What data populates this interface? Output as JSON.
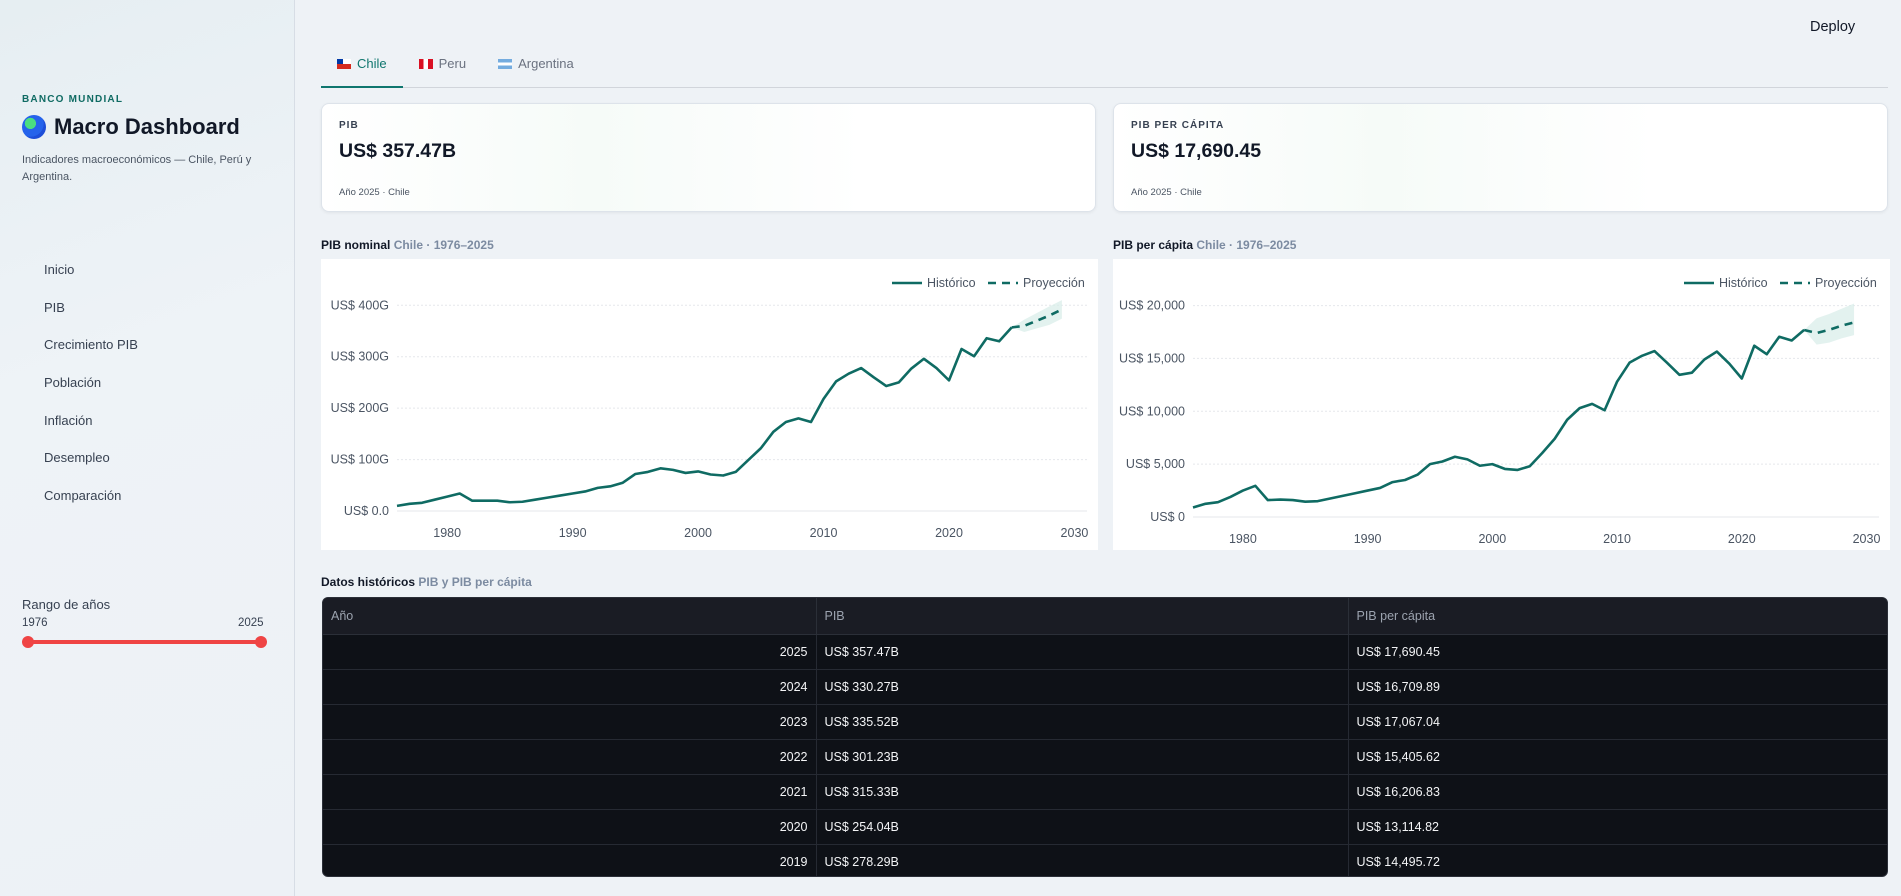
{
  "sidebar": {
    "kicker": "BANCO MUNDIAL",
    "title": "Macro Dashboard",
    "subtitle": "Indicadores macroeconómicos — Chile, Perú y Argentina.",
    "nav": [
      "Inicio",
      "PIB",
      "Crecimiento PIB",
      "Población",
      "Inflación",
      "Desempleo",
      "Comparación"
    ],
    "range": {
      "label": "Rango de años",
      "min": "1976",
      "max": "2025"
    }
  },
  "header": {
    "deploy_label": "Deploy"
  },
  "tabs": [
    {
      "label": "Chile",
      "flag": "flag-chile-icon"
    },
    {
      "label": "Peru",
      "flag": "flag-peru-icon"
    },
    {
      "label": "Argentina",
      "flag": "flag-argentina-icon"
    }
  ],
  "kpis": [
    {
      "label": "PIB",
      "value": "US$ 357.47B",
      "foot": "Año 2025 · Chile"
    },
    {
      "label": "PIB PER CÁPITA",
      "value": "US$ 17,690.45",
      "foot": "Año 2025 · Chile"
    }
  ],
  "charts_titles": [
    {
      "main": "PIB nominal",
      "sub": "Chile · 1976–2025"
    },
    {
      "main": "PIB per cápita",
      "sub": "Chile · 1976–2025"
    }
  ],
  "colors": {
    "accent": "#0f6b63",
    "band": "#d7ece8",
    "slider": "#ef4444",
    "table_bg": "#0e1117"
  },
  "chart_data": [
    {
      "type": "line",
      "xlabel": "",
      "ylabel": "",
      "xlim": [
        1976,
        2031
      ],
      "ylim": [
        0,
        420
      ],
      "yticks": [
        0,
        100,
        200,
        300,
        400
      ],
      "ytick_labels": [
        "US$ 0.0",
        "US$ 100G",
        "US$ 200G",
        "US$ 300G",
        "US$ 400G"
      ],
      "xticks": [
        1980,
        1990,
        2000,
        2010,
        2020,
        2030
      ],
      "legend": "top-right",
      "grid": true,
      "series": [
        {
          "name": "Histórico",
          "style": "solid",
          "x": [
            1976,
            1977,
            1978,
            1979,
            1980,
            1981,
            1982,
            1983,
            1984,
            1985,
            1986,
            1987,
            1988,
            1989,
            1990,
            1991,
            1992,
            1993,
            1994,
            1995,
            1996,
            1997,
            1998,
            1999,
            2000,
            2001,
            2002,
            2003,
            2004,
            2005,
            2006,
            2007,
            2008,
            2009,
            2010,
            2011,
            2012,
            2013,
            2014,
            2015,
            2016,
            2017,
            2018,
            2019,
            2020,
            2021,
            2022,
            2023,
            2024,
            2025
          ],
          "y": [
            10,
            14,
            16,
            22,
            28,
            34,
            20,
            20,
            20,
            17,
            18,
            22,
            26,
            30,
            34,
            38,
            45,
            48,
            55,
            72,
            76,
            83,
            80,
            74,
            77,
            71,
            69,
            76,
            99,
            122,
            154,
            173,
            180,
            173,
            218,
            252,
            267,
            278,
            260,
            243,
            250,
            277,
            296,
            278,
            254,
            315,
            301,
            336,
            330,
            357
          ]
        },
        {
          "name": "Proyección",
          "style": "dashed",
          "x": [
            2025,
            2026,
            2027,
            2028,
            2029
          ],
          "y": [
            357,
            360,
            370,
            380,
            392
          ],
          "band_upper": [
            357,
            372,
            385,
            398,
            410
          ],
          "band_lower": [
            357,
            348,
            355,
            362,
            374
          ]
        }
      ]
    },
    {
      "type": "line",
      "xlabel": "",
      "ylabel": "",
      "xlim": [
        1976,
        2031
      ],
      "ylim": [
        0,
        21000
      ],
      "yticks": [
        0,
        5000,
        10000,
        15000,
        20000
      ],
      "ytick_labels": [
        "US$ 0",
        "US$ 5,000",
        "US$ 10,000",
        "US$ 15,000",
        "US$ 20,000"
      ],
      "xticks": [
        1980,
        1990,
        2000,
        2010,
        2020,
        2030
      ],
      "legend": "top-right",
      "grid": true,
      "series": [
        {
          "name": "Histórico",
          "style": "solid",
          "x": [
            1976,
            1977,
            1978,
            1979,
            1980,
            1981,
            1982,
            1983,
            1984,
            1985,
            1986,
            1987,
            1988,
            1989,
            1990,
            1991,
            1992,
            1993,
            1994,
            1995,
            1996,
            1997,
            1998,
            1999,
            2000,
            2001,
            2002,
            2003,
            2004,
            2005,
            2006,
            2007,
            2008,
            2009,
            2010,
            2011,
            2012,
            2013,
            2014,
            2015,
            2016,
            2017,
            2018,
            2019,
            2020,
            2021,
            2022,
            2023,
            2024,
            2025
          ],
          "y": [
            900,
            1250,
            1400,
            1900,
            2500,
            2950,
            1600,
            1650,
            1600,
            1450,
            1500,
            1750,
            2000,
            2250,
            2500,
            2750,
            3300,
            3500,
            4000,
            5000,
            5250,
            5700,
            5450,
            4850,
            5000,
            4550,
            4450,
            4800,
            6050,
            7400,
            9200,
            10300,
            10700,
            10100,
            12800,
            14600,
            15250,
            15700,
            14600,
            13450,
            13650,
            14900,
            15650,
            14500,
            13100,
            16200,
            15400,
            17050,
            16700,
            17700
          ]
        },
        {
          "name": "Proyección",
          "style": "dashed",
          "x": [
            2025,
            2026,
            2027,
            2028,
            2029
          ],
          "y": [
            17690,
            17400,
            17700,
            18100,
            18400
          ],
          "band_upper": [
            17690,
            18800,
            19200,
            19700,
            20200
          ],
          "band_lower": [
            17690,
            16300,
            16500,
            16900,
            17200
          ]
        }
      ]
    }
  ],
  "table": {
    "title_main": "Datos históricos",
    "title_sub": "PIB y PIB per cápita",
    "columns": [
      "Año",
      "PIB",
      "PIB per cápita"
    ],
    "rows": [
      [
        "2025",
        "US$ 357.47B",
        "US$ 17,690.45"
      ],
      [
        "2024",
        "US$ 330.27B",
        "US$ 16,709.89"
      ],
      [
        "2023",
        "US$ 335.52B",
        "US$ 17,067.04"
      ],
      [
        "2022",
        "US$ 301.23B",
        "US$ 15,405.62"
      ],
      [
        "2021",
        "US$ 315.33B",
        "US$ 16,206.83"
      ],
      [
        "2020",
        "US$ 254.04B",
        "US$ 13,114.82"
      ],
      [
        "2019",
        "US$ 278.29B",
        "US$ 14,495.72"
      ]
    ]
  }
}
